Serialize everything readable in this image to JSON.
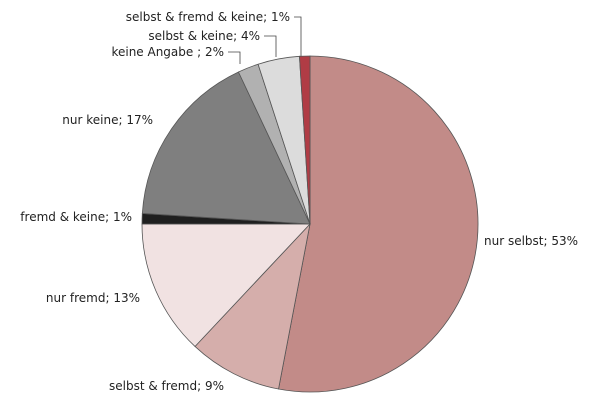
{
  "chart_data": {
    "type": "pie",
    "slices": [
      {
        "label": "nur selbst; 53%",
        "value": 53,
        "color": "#c28b88"
      },
      {
        "label": "selbst & fremd; 9%",
        "value": 9,
        "color": "#d5aeab"
      },
      {
        "label": "nur fremd; 13%",
        "value": 13,
        "color": "#f1e2e2"
      },
      {
        "label": "fremd & keine; 1%",
        "value": 1,
        "color": "#1f1f1f"
      },
      {
        "label": "nur keine; 17%",
        "value": 17,
        "color": "#7f7f7f"
      },
      {
        "label": "keine Angabe ; 2%",
        "value": 2,
        "color": "#b1b1b1"
      },
      {
        "label": "selbst & keine; 4%",
        "value": 4,
        "color": "#dcdcdc"
      },
      {
        "label": "selbst & fremd & keine; 1%",
        "value": 1,
        "color": "#b03c45"
      }
    ]
  }
}
